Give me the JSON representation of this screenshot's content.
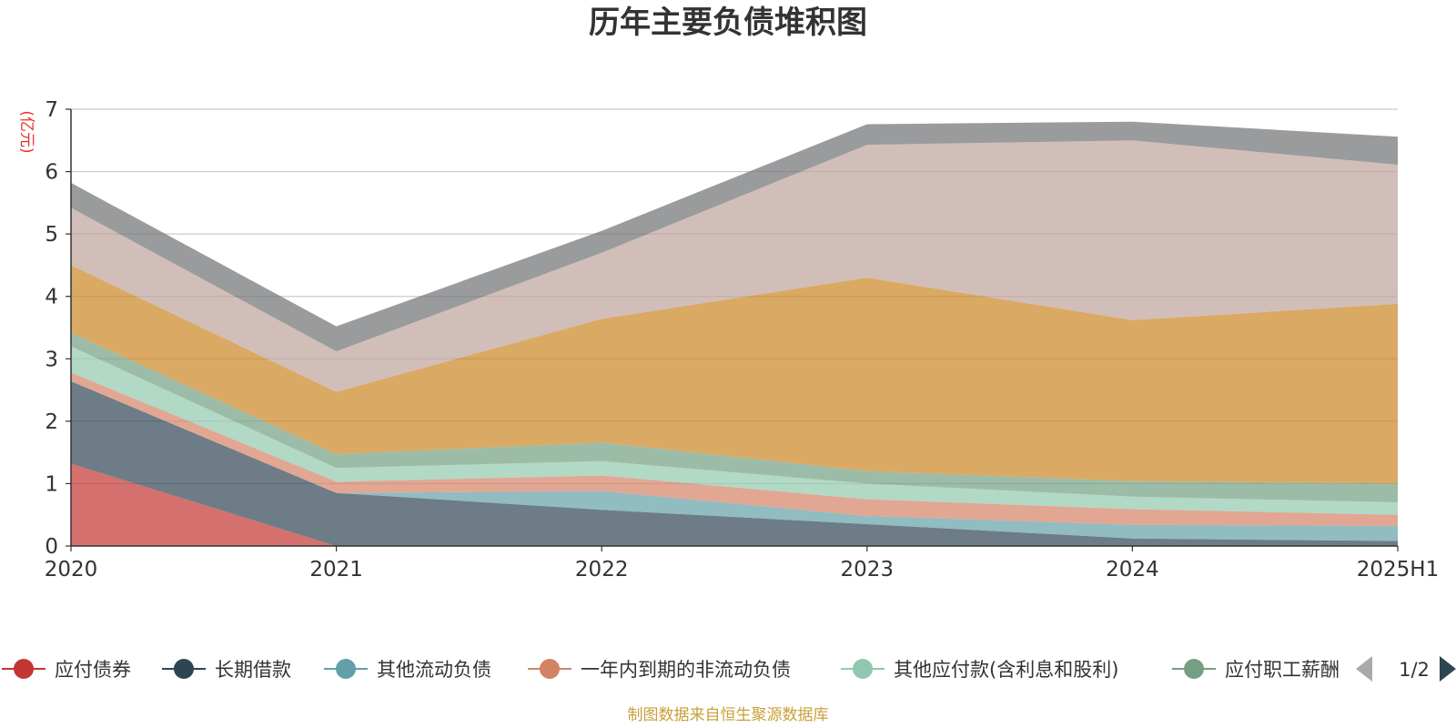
{
  "chart_data": {
    "type": "area",
    "stacked": true,
    "title": "历年主要负债堆积图",
    "y_unit": "(亿元)",
    "categories": [
      "2020",
      "2021",
      "2022",
      "2023",
      "2024",
      "2025H1"
    ],
    "ylim": [
      0,
      7
    ],
    "yticks": [
      "0",
      "1",
      "2",
      "3",
      "4",
      "5",
      "6",
      "7"
    ],
    "grid": true,
    "legend_position": "bottom",
    "series": [
      {
        "name": "应付债券",
        "color": "#c23531",
        "values": [
          1.32,
          0.0,
          0.0,
          0.0,
          0.0,
          0.0
        ]
      },
      {
        "name": "长期借款",
        "color": "#2f4554",
        "values": [
          1.32,
          0.85,
          0.58,
          0.35,
          0.12,
          0.08
        ]
      },
      {
        "name": "其他流动负债",
        "color": "#61a0a8",
        "values": [
          0.0,
          0.0,
          0.3,
          0.13,
          0.22,
          0.24
        ]
      },
      {
        "name": "一年内到期的非流动负债",
        "color": "#d48265",
        "values": [
          0.14,
          0.18,
          0.25,
          0.27,
          0.25,
          0.18
        ]
      },
      {
        "name": "其他应付款(含利息和股利)",
        "color": "#91c7ae",
        "values": [
          0.42,
          0.22,
          0.23,
          0.25,
          0.2,
          0.2
        ]
      },
      {
        "name": "应付职工薪酬",
        "color": "#749f83",
        "values": [
          0.22,
          0.22,
          0.3,
          0.2,
          0.25,
          0.3
        ]
      },
      {
        "name": "",
        "color": "#ca8622",
        "values": [
          1.08,
          1.0,
          1.98,
          3.1,
          2.58,
          2.88
        ]
      },
      {
        "name": "",
        "color": "#bda29a",
        "values": [
          0.92,
          0.65,
          1.06,
          2.13,
          2.88,
          2.23
        ]
      },
      {
        "name": "",
        "color": "#6e7074",
        "values": [
          0.4,
          0.4,
          0.35,
          0.33,
          0.3,
          0.45
        ]
      }
    ]
  },
  "legend": {
    "visible_count": 6,
    "truncated_label": "应付职工薪酬",
    "page_indicator": "1/2"
  },
  "source_note": "制图数据来自恒生聚源数据库",
  "colors": {
    "source_note": "#c9a03a",
    "pager_inactive": "#aaaaaa",
    "pager_active": "#2f4554"
  }
}
